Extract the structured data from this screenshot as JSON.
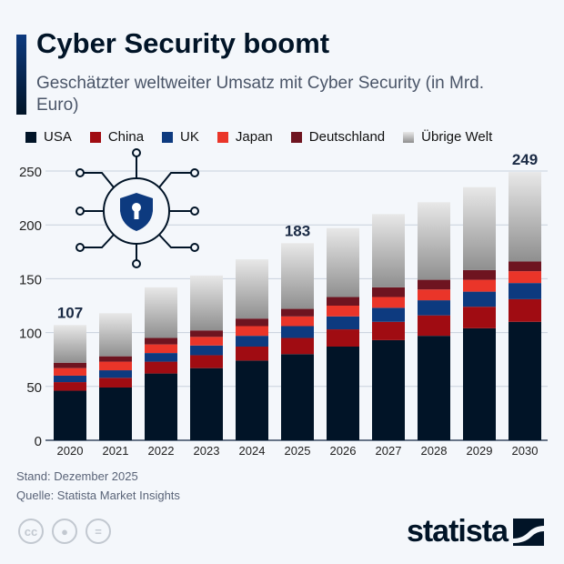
{
  "title": "Cyber Security boomt",
  "subtitle": "Geschätzter weltweiter Umsatz mit Cyber Security (in Mrd. Euro)",
  "footer": {
    "stand": "Stand: Dezember 2025",
    "quelle": "Quelle: Statista Market Insights"
  },
  "logo": "statista",
  "icons": [
    "cc-icon",
    "person-icon",
    "equals-icon",
    "shield-keyhole-icon"
  ],
  "chart_data": {
    "type": "bar",
    "stacked": true,
    "categories": [
      "2020",
      "2021",
      "2022",
      "2023",
      "2024",
      "2025",
      "2026",
      "2027",
      "2028",
      "2029",
      "2030"
    ],
    "series": [
      {
        "name": "USA",
        "color": "#011427",
        "values": [
          46,
          49,
          62,
          67,
          74,
          80,
          87,
          93,
          97,
          104,
          110
        ]
      },
      {
        "name": "China",
        "color": "#a00c12",
        "values": [
          8,
          9,
          11,
          12,
          13,
          15,
          16,
          17,
          19,
          20,
          21
        ]
      },
      {
        "name": "UK",
        "color": "#0d3a7f",
        "values": [
          6,
          7,
          8,
          9,
          10,
          11,
          12,
          13,
          14,
          14,
          15
        ]
      },
      {
        "name": "Japan",
        "color": "#ea3529",
        "values": [
          7,
          8,
          8,
          8,
          9,
          9,
          10,
          10,
          10,
          11,
          11
        ]
      },
      {
        "name": "Deutschland",
        "color": "#6e1420",
        "values": [
          5,
          5,
          6,
          6,
          7,
          7,
          8,
          9,
          9,
          9,
          9
        ]
      },
      {
        "name": "Übrige Welt",
        "color": "#9a9a9a",
        "values": [
          35,
          40,
          47,
          51,
          55,
          61,
          64,
          68,
          72,
          77,
          83
        ]
      }
    ],
    "data_labels": {
      "2020": "107",
      "2025": "183",
      "2030": "249"
    },
    "yticks": [
      0,
      50,
      100,
      150,
      200,
      250
    ],
    "ylim": [
      0,
      250
    ],
    "grid": true,
    "legend": "top"
  }
}
